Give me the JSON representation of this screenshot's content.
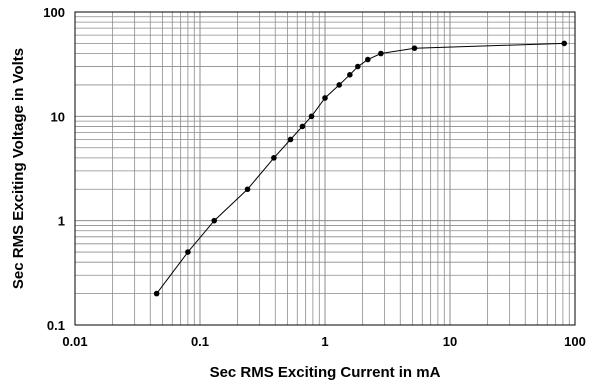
{
  "chart_data": {
    "type": "line",
    "title": "",
    "xlabel": "Sec RMS Exciting Current in mA",
    "ylabel": "Sec RMS Exciting Voltage in Volts",
    "x_scale": "log",
    "y_scale": "log",
    "xlim": [
      0.01,
      100
    ],
    "ylim": [
      0.1,
      100
    ],
    "x_ticks": [
      "0.01",
      "0.1",
      "1",
      "10",
      "100"
    ],
    "y_ticks": [
      "0.1",
      "1",
      "10",
      "100"
    ],
    "grid": true,
    "legend": "none",
    "line_color": "#000000",
    "grid_color": "#8c8c8c",
    "series": [
      {
        "x": [
          0.045,
          0.08,
          0.13,
          0.24,
          0.39,
          0.53,
          0.66,
          0.78,
          1.0,
          1.3,
          1.58,
          1.83,
          2.2,
          2.8,
          5.2,
          82
        ],
        "y": [
          0.2,
          0.5,
          1.0,
          2.0,
          4.0,
          6.0,
          8.0,
          10.0,
          15.0,
          20.0,
          25.0,
          30.0,
          35.0,
          40.0,
          45.0,
          50.0
        ]
      }
    ]
  }
}
